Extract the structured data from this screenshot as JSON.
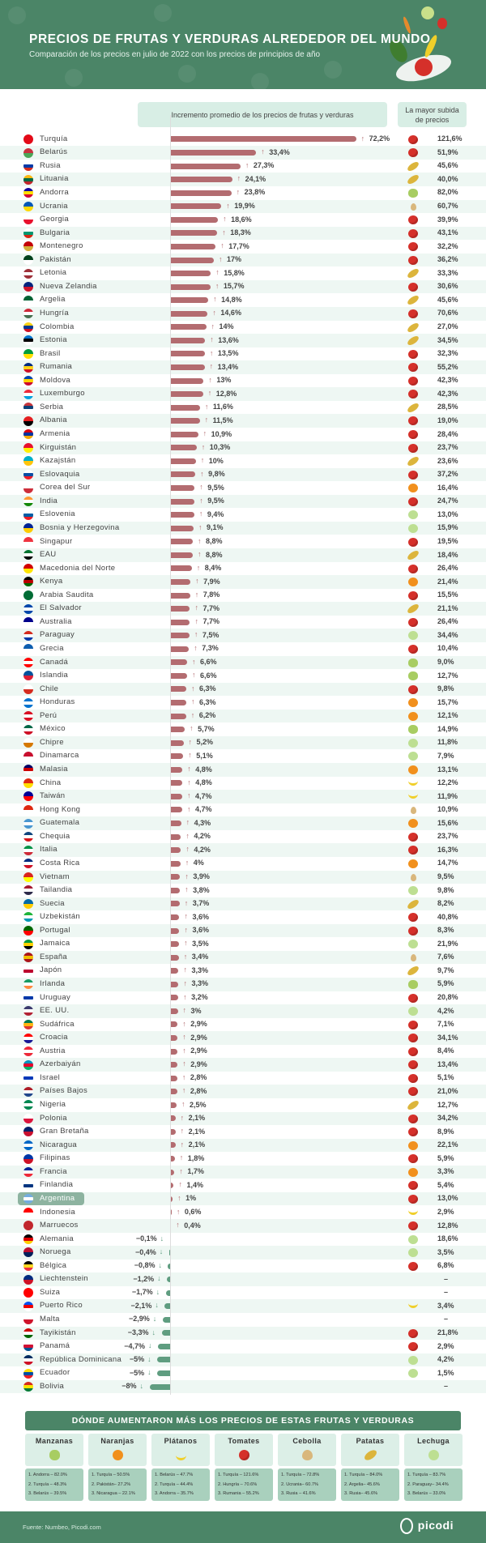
{
  "header": {
    "title": "PRECIOS DE FRUTAS Y VERDURAS ALREDEDOR DEL MUNDO",
    "subtitle": "Comparación de los precios en julio de 2022 con los precios de principios de año"
  },
  "columns": {
    "increase": "Incremento promedio de los precios de frutas y verduras",
    "top_rise": "La mayor subida de precios"
  },
  "highlighted_country": "Argentina",
  "colors": {
    "banner": "#4b8567",
    "positive_bar": "#b36c70",
    "negative_bar": "#5f9d80",
    "stripe": "#eef7f3"
  },
  "chart_data": {
    "type": "bar",
    "orientation": "horizontal",
    "xlabel": "Incremento promedio de los precios de frutas y verduras",
    "unit": "%",
    "rows": [
      {
        "country": "Turquía",
        "increase": 72.2,
        "label": "72,2%",
        "top": "121,6%",
        "icon": "tomato"
      },
      {
        "country": "Belarús",
        "increase": 33.4,
        "label": "33,4%",
        "top": "51,9%",
        "icon": "tomato"
      },
      {
        "country": "Rusia",
        "increase": 27.3,
        "label": "27,3%",
        "top": "45,6%",
        "icon": "potato"
      },
      {
        "country": "Lituania",
        "increase": 24.1,
        "label": "24,1%",
        "top": "40,0%",
        "icon": "potato"
      },
      {
        "country": "Andorra",
        "increase": 23.8,
        "label": "23,8%",
        "top": "82,0%",
        "icon": "apple"
      },
      {
        "country": "Ucrania",
        "increase": 19.9,
        "label": "19,9%",
        "top": "60,7%",
        "icon": "onion"
      },
      {
        "country": "Georgia",
        "increase": 18.6,
        "label": "18,6%",
        "top": "39,9%",
        "icon": "tomato"
      },
      {
        "country": "Bulgaria",
        "increase": 18.3,
        "label": "18,3%",
        "top": "43,1%",
        "icon": "tomato"
      },
      {
        "country": "Montenegro",
        "increase": 17.7,
        "label": "17,7%",
        "top": "32,2%",
        "icon": "tomato"
      },
      {
        "country": "Pakistán",
        "increase": 17,
        "label": "17%",
        "top": "36,2%",
        "icon": "tomato"
      },
      {
        "country": "Letonia",
        "increase": 15.8,
        "label": "15,8%",
        "top": "33,3%",
        "icon": "potato"
      },
      {
        "country": "Nueva Zelandia",
        "increase": 15.7,
        "label": "15,7%",
        "top": "30,6%",
        "icon": "tomato"
      },
      {
        "country": "Argelia",
        "increase": 14.8,
        "label": "14,8%",
        "top": "45,6%",
        "icon": "potato"
      },
      {
        "country": "Hungría",
        "increase": 14.6,
        "label": "14,6%",
        "top": "70,6%",
        "icon": "tomato"
      },
      {
        "country": "Colombia",
        "increase": 14,
        "label": "14%",
        "top": "27,0%",
        "icon": "potato"
      },
      {
        "country": "Estonia",
        "increase": 13.6,
        "label": "13,6%",
        "top": "34,5%",
        "icon": "potato"
      },
      {
        "country": "Brasil",
        "increase": 13.5,
        "label": "13,5%",
        "top": "32,3%",
        "icon": "tomato"
      },
      {
        "country": "Rumania",
        "increase": 13.4,
        "label": "13,4%",
        "top": "55,2%",
        "icon": "tomato"
      },
      {
        "country": "Moldova",
        "increase": 13,
        "label": "13%",
        "top": "42,3%",
        "icon": "tomato"
      },
      {
        "country": "Luxemburgo",
        "increase": 12.8,
        "label": "12,8%",
        "top": "42,3%",
        "icon": "tomato"
      },
      {
        "country": "Serbia",
        "increase": 11.6,
        "label": "11,6%",
        "top": "28,5%",
        "icon": "potato"
      },
      {
        "country": "Albania",
        "increase": 11.5,
        "label": "11,5%",
        "top": "19,0%",
        "icon": "tomato"
      },
      {
        "country": "Armenia",
        "increase": 10.9,
        "label": "10,9%",
        "top": "28,4%",
        "icon": "tomato"
      },
      {
        "country": "Kirguistán",
        "increase": 10.3,
        "label": "10,3%",
        "top": "23,7%",
        "icon": "tomato"
      },
      {
        "country": "Kazajstán",
        "increase": 10,
        "label": "10%",
        "top": "23,6%",
        "icon": "potato"
      },
      {
        "country": "Eslovaquia",
        "increase": 9.8,
        "label": "9,8%",
        "top": "37,2%",
        "icon": "tomato"
      },
      {
        "country": "Corea del Sur",
        "increase": 9.5,
        "label": "9,5%",
        "top": "16,4%",
        "icon": "orange"
      },
      {
        "country": "India",
        "increase": 9.5,
        "label": "9,5%",
        "top": "24,7%",
        "icon": "tomato"
      },
      {
        "country": "Eslovenia",
        "increase": 9.4,
        "label": "9,4%",
        "top": "13,0%",
        "icon": "lettuce"
      },
      {
        "country": "Bosnia y Herzegovina",
        "increase": 9.1,
        "label": "9,1%",
        "top": "15,9%",
        "icon": "lettuce"
      },
      {
        "country": "Singapur",
        "increase": 8.8,
        "label": "8,8%",
        "top": "19,5%",
        "icon": "tomato"
      },
      {
        "country": "EAU",
        "increase": 8.8,
        "label": "8,8%",
        "top": "18,4%",
        "icon": "potato"
      },
      {
        "country": "Macedonia del Norte",
        "increase": 8.4,
        "label": "8,4%",
        "top": "26,4%",
        "icon": "tomato"
      },
      {
        "country": "Kenya",
        "increase": 7.9,
        "label": "7,9%",
        "top": "21,4%",
        "icon": "orange"
      },
      {
        "country": "Arabia Saudita",
        "increase": 7.8,
        "label": "7,8%",
        "top": "15,5%",
        "icon": "tomato"
      },
      {
        "country": "El Salvador",
        "increase": 7.7,
        "label": "7,7%",
        "top": "21,1%",
        "icon": "potato"
      },
      {
        "country": "Australia",
        "increase": 7.7,
        "label": "7,7%",
        "top": "26,4%",
        "icon": "tomato"
      },
      {
        "country": "Paraguay",
        "increase": 7.5,
        "label": "7,5%",
        "top": "34,4%",
        "icon": "lettuce"
      },
      {
        "country": "Grecia",
        "increase": 7.3,
        "label": "7,3%",
        "top": "10,4%",
        "icon": "tomato"
      },
      {
        "country": "Canadá",
        "increase": 6.6,
        "label": "6,6%",
        "top": "9,0%",
        "icon": "apple"
      },
      {
        "country": "Islandia",
        "increase": 6.6,
        "label": "6,6%",
        "top": "12,7%",
        "icon": "apple"
      },
      {
        "country": "Chile",
        "increase": 6.3,
        "label": "6,3%",
        "top": "9,8%",
        "icon": "tomato"
      },
      {
        "country": "Honduras",
        "increase": 6.3,
        "label": "6,3%",
        "top": "15,7%",
        "icon": "orange"
      },
      {
        "country": "Perú",
        "increase": 6.2,
        "label": "6,2%",
        "top": "12,1%",
        "icon": "orange"
      },
      {
        "country": "México",
        "increase": 5.7,
        "label": "5,7%",
        "top": "14,9%",
        "icon": "apple"
      },
      {
        "country": "Chipre",
        "increase": 5.2,
        "label": "5,2%",
        "top": "11,8%",
        "icon": "lettuce"
      },
      {
        "country": "Dinamarca",
        "increase": 5.1,
        "label": "5,1%",
        "top": "7,9%",
        "icon": "lettuce"
      },
      {
        "country": "Malasia",
        "increase": 4.8,
        "label": "4,8%",
        "top": "13,1%",
        "icon": "orange"
      },
      {
        "country": "China",
        "increase": 4.8,
        "label": "4,8%",
        "top": "12,2%",
        "icon": "banana"
      },
      {
        "country": "Taiwán",
        "increase": 4.7,
        "label": "4,7%",
        "top": "11,9%",
        "icon": "banana"
      },
      {
        "country": "Hong Kong",
        "increase": 4.7,
        "label": "4,7%",
        "top": "10,9%",
        "icon": "onion"
      },
      {
        "country": "Guatemala",
        "increase": 4.3,
        "label": "4,3%",
        "top": "15,6%",
        "icon": "orange"
      },
      {
        "country": "Chequia",
        "increase": 4.2,
        "label": "4,2%",
        "top": "23,7%",
        "icon": "tomato"
      },
      {
        "country": "Italia",
        "increase": 4.2,
        "label": "4,2%",
        "top": "16,3%",
        "icon": "tomato"
      },
      {
        "country": "Costa Rica",
        "increase": 4,
        "label": "4%",
        "top": "14,7%",
        "icon": "orange"
      },
      {
        "country": "Vietnam",
        "increase": 3.9,
        "label": "3,9%",
        "top": "9,5%",
        "icon": "onion"
      },
      {
        "country": "Tailandia",
        "increase": 3.8,
        "label": "3,8%",
        "top": "9,8%",
        "icon": "lettuce"
      },
      {
        "country": "Suecia",
        "increase": 3.7,
        "label": "3,7%",
        "top": "8,2%",
        "icon": "potato"
      },
      {
        "country": "Uzbekistán",
        "increase": 3.6,
        "label": "3,6%",
        "top": "40,8%",
        "icon": "tomato"
      },
      {
        "country": "Portugal",
        "increase": 3.6,
        "label": "3,6%",
        "top": "8,3%",
        "icon": "tomato"
      },
      {
        "country": "Jamaica",
        "increase": 3.5,
        "label": "3,5%",
        "top": "21,9%",
        "icon": "lettuce"
      },
      {
        "country": "España",
        "increase": 3.4,
        "label": "3,4%",
        "top": "7,6%",
        "icon": "onion"
      },
      {
        "country": "Japón",
        "increase": 3.3,
        "label": "3,3%",
        "top": "9,7%",
        "icon": "potato"
      },
      {
        "country": "Irlanda",
        "increase": 3.3,
        "label": "3,3%",
        "top": "5,9%",
        "icon": "apple"
      },
      {
        "country": "Uruguay",
        "increase": 3.2,
        "label": "3,2%",
        "top": "20,8%",
        "icon": "tomato"
      },
      {
        "country": "EE. UU.",
        "increase": 3,
        "label": "3%",
        "top": "4,2%",
        "icon": "lettuce"
      },
      {
        "country": "Sudáfrica",
        "increase": 2.9,
        "label": "2,9%",
        "top": "7,1%",
        "icon": "tomato"
      },
      {
        "country": "Croacia",
        "increase": 2.9,
        "label": "2,9%",
        "top": "34,1%",
        "icon": "tomato"
      },
      {
        "country": "Austria",
        "increase": 2.9,
        "label": "2,9%",
        "top": "8,4%",
        "icon": "tomato"
      },
      {
        "country": "Azerbaiyán",
        "increase": 2.9,
        "label": "2,9%",
        "top": "13,4%",
        "icon": "tomato"
      },
      {
        "country": "Israel",
        "increase": 2.8,
        "label": "2,8%",
        "top": "5,1%",
        "icon": "tomato"
      },
      {
        "country": "Países Bajos",
        "increase": 2.8,
        "label": "2,8%",
        "top": "21,0%",
        "icon": "tomato"
      },
      {
        "country": "Nigeria",
        "increase": 2.5,
        "label": "2,5%",
        "top": "12,7%",
        "icon": "potato"
      },
      {
        "country": "Polonia",
        "increase": 2.1,
        "label": "2,1%",
        "top": "34,2%",
        "icon": "tomato"
      },
      {
        "country": "Gran Bretaña",
        "increase": 2.1,
        "label": "2,1%",
        "top": "8,9%",
        "icon": "tomato"
      },
      {
        "country": "Nicaragua",
        "increase": 2.1,
        "label": "2,1%",
        "top": "22,1%",
        "icon": "orange"
      },
      {
        "country": "Filipinas",
        "increase": 1.8,
        "label": "1,8%",
        "top": "5,9%",
        "icon": "tomato"
      },
      {
        "country": "Francia",
        "increase": 1.7,
        "label": "1,7%",
        "top": "3,3%",
        "icon": "orange"
      },
      {
        "country": "Finlandia",
        "increase": 1.4,
        "label": "1,4%",
        "top": "5,4%",
        "icon": "tomato"
      },
      {
        "country": "Argentina",
        "increase": 1,
        "label": "1%",
        "top": "13,0%",
        "icon": "tomato"
      },
      {
        "country": "Indonesia",
        "increase": 0.6,
        "label": "0,6%",
        "top": "2,9%",
        "icon": "banana"
      },
      {
        "country": "Marruecos",
        "increase": 0.4,
        "label": "0,4%",
        "top": "12,8%",
        "icon": "tomato"
      },
      {
        "country": "Alemania",
        "increase": -0.1,
        "label": "−0,1%",
        "top": "18,6%",
        "icon": "lettuce"
      },
      {
        "country": "Noruega",
        "increase": -0.4,
        "label": "−0,4%",
        "top": "3,5%",
        "icon": "lettuce"
      },
      {
        "country": "Bélgica",
        "increase": -0.8,
        "label": "−0,8%",
        "top": "6,8%",
        "icon": "tomato"
      },
      {
        "country": "Liechtenstein",
        "increase": -1.2,
        "label": "−1,2%",
        "top": "–",
        "icon": ""
      },
      {
        "country": "Suiza",
        "increase": -1.7,
        "label": "−1,7%",
        "top": "–",
        "icon": ""
      },
      {
        "country": "Puerto Rico",
        "increase": -2.1,
        "label": "−2,1%",
        "top": "3,4%",
        "icon": "banana"
      },
      {
        "country": "Malta",
        "increase": -2.9,
        "label": "−2,9%",
        "top": "–",
        "icon": ""
      },
      {
        "country": "Tayikistán",
        "increase": -3.3,
        "label": "−3,3%",
        "top": "21,8%",
        "icon": "tomato"
      },
      {
        "country": "Panamá",
        "increase": -4.7,
        "label": "−4,7%",
        "top": "2,9%",
        "icon": "tomato"
      },
      {
        "country": "República Dominicana",
        "increase": -5,
        "label": "−5%",
        "top": "4,2%",
        "icon": "lettuce"
      },
      {
        "country": "Ecuador",
        "increase": -5,
        "label": "−5%",
        "top": "1,5%",
        "icon": "lettuce"
      },
      {
        "country": "Bolivia",
        "increase": -8,
        "label": "−8%",
        "top": "–",
        "icon": ""
      }
    ]
  },
  "products_section": {
    "title": "DÓNDE AUMENTARON MÁS LOS PRECIOS DE ESTAS FRUTAS Y VERDURAS",
    "products": [
      {
        "name": "Manzanas",
        "icon": "apple",
        "top3": [
          "1. Andorra – 82.0%",
          "2. Turquía – 48.3%",
          "3. Belarús – 39.5%"
        ]
      },
      {
        "name": "Naranjas",
        "icon": "orange",
        "top3": [
          "1. Turquía – 50.5%",
          "2. Pakistán– 27.2%",
          "3. Nicaragua – 22.1%"
        ]
      },
      {
        "name": "Plátanos",
        "icon": "banana",
        "top3": [
          "1. Belarús – 47.7%",
          "2. Turquía – 44.4%",
          "3. Andorra – 35.7%"
        ]
      },
      {
        "name": "Tomates",
        "icon": "tomato",
        "top3": [
          "1. Turquía – 121.6%",
          "2. Hungría – 70.6%",
          "3. Rumania – 55.2%"
        ]
      },
      {
        "name": "Cebolla",
        "icon": "onion",
        "top3": [
          "1. Turquía – 72.8%",
          "2. Ucrania– 60.7%",
          "3. Rusia – 41.6%"
        ]
      },
      {
        "name": "Patatas",
        "icon": "potato",
        "top3": [
          "1. Turquía – 84.0%",
          "2. Argelia– 45.6%",
          "3. Rusia– 45.6%"
        ]
      },
      {
        "name": "Lechuga",
        "icon": "lettuce",
        "top3": [
          "1. Turquía – 83.7%",
          "2. Paraguay– 34.4%",
          "3. Belarús – 33.0%"
        ]
      }
    ]
  },
  "footer": {
    "source": "Fuente: Numbeo, Picodi.com",
    "logo": "picodi"
  }
}
